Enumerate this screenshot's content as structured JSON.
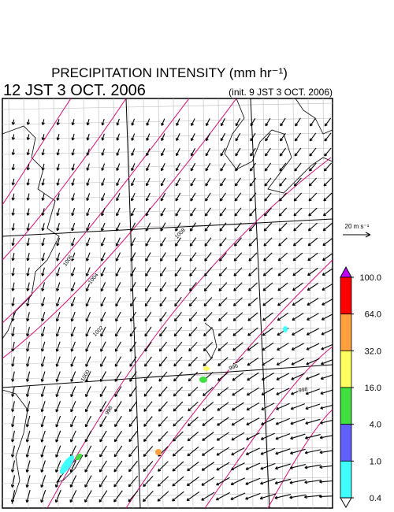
{
  "header": {
    "title": "PRECIPITATION INTENSITY (mm hr⁻¹)",
    "valid_time": "12 JST 3 OCT. 2006",
    "init_time": "(init. 9 JST 3 OCT. 2006)"
  },
  "wind_legend": {
    "label": "20 m s⁻¹"
  },
  "colorbar": {
    "ticks": [
      {
        "value": 100,
        "label": "100.0"
      },
      {
        "value": 64,
        "label": "64.0"
      },
      {
        "value": 32,
        "label": "32.0"
      },
      {
        "value": 16,
        "label": "16.0"
      },
      {
        "value": 4,
        "label": "4.0"
      },
      {
        "value": 1,
        "label": "1.0"
      },
      {
        "value": 0.4,
        "label": "0.4"
      }
    ],
    "colors": [
      "#ff0000",
      "#ffa040",
      "#ffff60",
      "#40e040",
      "#6060ff",
      "#40ffff"
    ],
    "over_color": "#c000ff"
  },
  "isobars": {
    "labels": [
      "1006",
      "1004",
      "1002",
      "1000",
      "998",
      "1008",
      "996",
      "998"
    ]
  }
}
